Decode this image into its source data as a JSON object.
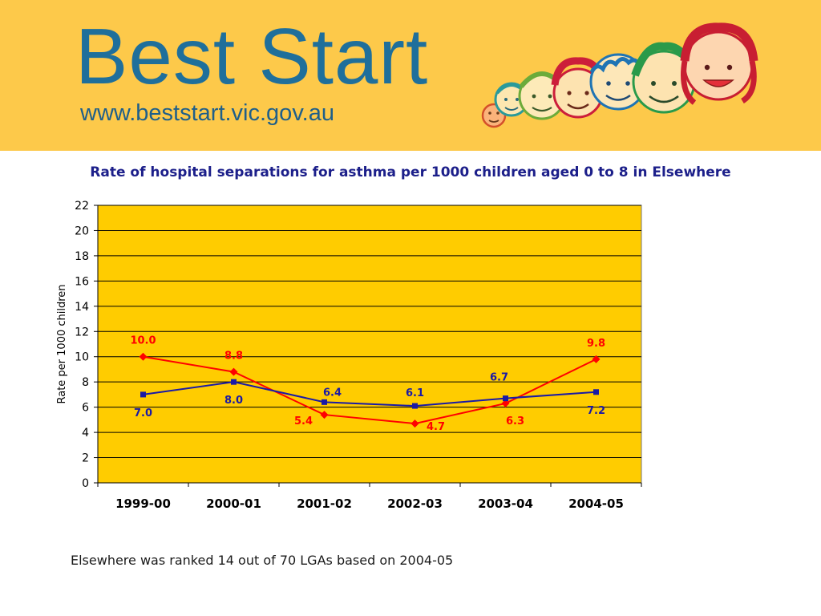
{
  "header": {
    "brand_title": "Best Start",
    "brand_url": "www.beststart.vic.gov.au"
  },
  "chart_data": {
    "type": "line",
    "title": "Rate of hospital separations for asthma per 1000 children aged 0 to 8 in Elsewhere",
    "xlabel": "",
    "ylabel": "Rate per 1000 children",
    "categories": [
      "1999-00",
      "2000-01",
      "2001-02",
      "2002-03",
      "2003-04",
      "2004-05"
    ],
    "ylim": [
      0,
      22
    ],
    "yticks": [
      0,
      2,
      4,
      6,
      8,
      10,
      12,
      14,
      16,
      18,
      20,
      22
    ],
    "grid": true,
    "plot_background": "#ffcc00",
    "series": [
      {
        "color": "#ff0000",
        "marker": "diamond",
        "values": [
          10.0,
          8.8,
          5.4,
          4.7,
          6.3,
          9.8
        ],
        "labels": [
          "10.0",
          "8.8",
          "5.4",
          "4.7",
          "6.3",
          "9.8"
        ]
      },
      {
        "color": "#1a1aa6",
        "marker": "square",
        "values": [
          7.0,
          8.0,
          6.4,
          6.1,
          6.7,
          7.2
        ],
        "labels": [
          "7.0",
          "8.0",
          "6.4",
          "6.1",
          "6.7",
          "7.2"
        ]
      }
    ]
  },
  "note": "Elsewhere was ranked 14 out of 70 LGAs based on 2004-05"
}
